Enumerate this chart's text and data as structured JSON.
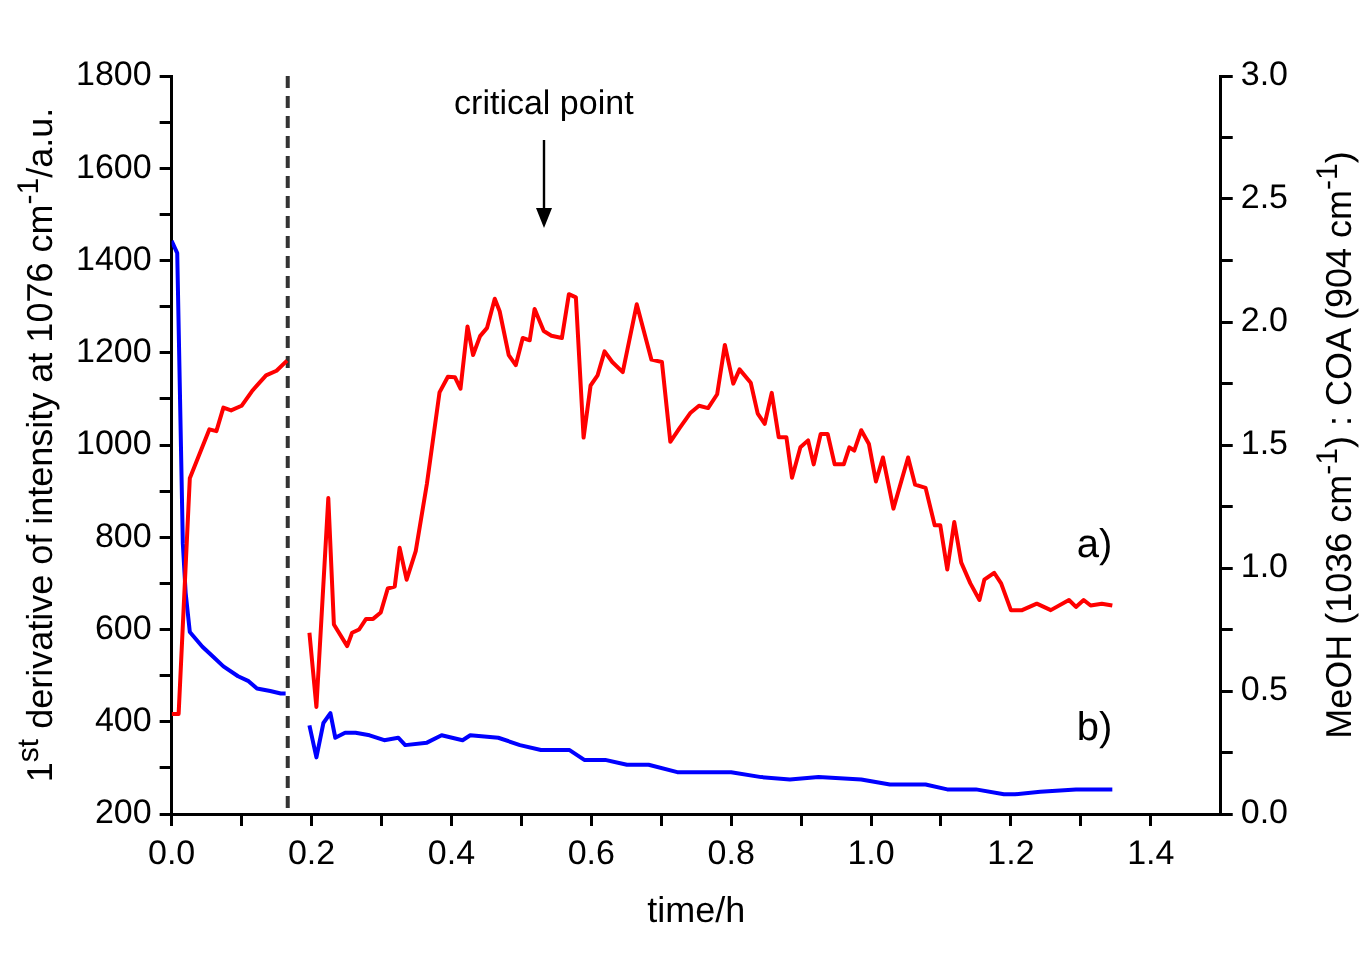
{
  "chart_data": {
    "type": "line",
    "xlabel": "time/h",
    "ylabel": "1$^{st}$ derivative of intensity at 1076 cm$^{-1}$/a.u.",
    "y2label": "MeOH (1036 cm$^{-1}$) : COA (904 cm$^{-1}$)",
    "xlim": [
      0,
      1.5
    ],
    "xticks": [
      {
        "value": 0,
        "label": "0.0"
      },
      {
        "value": 0.1,
        "label": null
      },
      {
        "value": 0.2,
        "label": "0.2"
      },
      {
        "value": 0.3,
        "label": null
      },
      {
        "value": 0.4,
        "label": "0.4"
      },
      {
        "value": 0.5,
        "label": null
      },
      {
        "value": 0.6,
        "label": "0.6"
      },
      {
        "value": 0.7,
        "label": null
      },
      {
        "value": 0.8,
        "label": "0.8"
      },
      {
        "value": 0.9,
        "label": null
      },
      {
        "value": 1.0,
        "label": "1.0"
      },
      {
        "value": 1.1,
        "label": null
      },
      {
        "value": 1.2,
        "label": "1.2"
      },
      {
        "value": 1.3,
        "label": null
      },
      {
        "value": 1.4,
        "label": "1.4"
      }
    ],
    "ylim": [
      200,
      1800
    ],
    "yticks": [
      200,
      {
        "value": 300,
        "label": null
      },
      400,
      {
        "value": 500,
        "label": null
      },
      600,
      {
        "value": 700,
        "label": null
      },
      800,
      {
        "value": 900,
        "label": null
      },
      1000,
      {
        "value": 1100,
        "label": null
      },
      1200,
      {
        "value": 1300,
        "label": null
      },
      1400,
      {
        "value": 1500,
        "label": null
      },
      1600,
      {
        "value": 1700,
        "label": null
      },
      1800
    ],
    "y2lim": [
      0,
      3
    ],
    "y2ticks": [
      {
        "value": 0,
        "label": "0.0"
      },
      {
        "value": 0.25,
        "label": null
      },
      0.5,
      {
        "value": 0.75,
        "label": null
      },
      {
        "value": 1,
        "label": "1.0"
      },
      {
        "value": 1.25,
        "label": null
      },
      1.5,
      {
        "value": 1.75,
        "label": null
      },
      {
        "value": 2,
        "label": "2.0"
      },
      {
        "value": 2.25,
        "label": null
      },
      2.5,
      {
        "value": 2.75,
        "label": null
      },
      {
        "value": 3,
        "label": "3.0"
      }
    ],
    "grid": false,
    "legend": false,
    "marker": "none",
    "line_style": "solid",
    "ref_lines": [
      {
        "axis": "x",
        "value": 0.166,
        "color": "#333333",
        "line_style": "dashed"
      }
    ],
    "annotations": [
      "critical point"
    ],
    "series": [
      {
        "name": "a)",
        "color": "#ff0000",
        "x": [
          0,
          0.01,
          0.026,
          0.054,
          0.064,
          0.074,
          0.085,
          0.1,
          0.115,
          0.135,
          0.15,
          0.165,
          0.18,
          0.197,
          0.207,
          0.224,
          0.232,
          0.251,
          0.258,
          0.268,
          0.278,
          0.288,
          0.299,
          0.309,
          0.319,
          0.326,
          0.336,
          0.349,
          0.365,
          0.383,
          0.395,
          0.405,
          0.413,
          0.423,
          0.431,
          0.441,
          0.451,
          0.462,
          0.469,
          0.482,
          0.492,
          0.502,
          0.512,
          0.519,
          0.532,
          0.543,
          0.558,
          0.568,
          0.578,
          0.589,
          0.599,
          0.609,
          0.619,
          0.63,
          0.645,
          0.665,
          0.686,
          0.701,
          0.713,
          0.726,
          0.742,
          0.754,
          0.767,
          0.78,
          0.791,
          0.803,
          0.812,
          0.828,
          0.838,
          0.848,
          0.858,
          0.868,
          0.879,
          0.887,
          0.899,
          0.91,
          0.918,
          0.928,
          0.938,
          0.948,
          0.961,
          0.969,
          0.976,
          0.986,
          0.997,
          1.007,
          1.017,
          1.032,
          1.053,
          1.063,
          1.078,
          1.091,
          1.099,
          1.109,
          1.119,
          1.129,
          1.142,
          1.155,
          1.162,
          1.176,
          1.186,
          1.2,
          1.216,
          1.237,
          1.257,
          1.283,
          1.293,
          1.304,
          1.314,
          1.33,
          1.345
        ],
        "values": [
          417,
          417,
          928,
          1034,
          1030,
          1081,
          1075,
          1085,
          1117,
          1151,
          1161,
          1183,
          null,
          593,
          432,
          885,
          611,
          564,
          593,
          600,
          623,
          623,
          637,
          689,
          693,
          777,
          708,
          770,
          916,
          1114,
          1148,
          1147,
          1122,
          1257,
          1195,
          1236,
          1254,
          1317,
          1290,
          1195,
          1173,
          1232,
          1227,
          1295,
          1247,
          1237,
          1232,
          1327,
          1320,
          1016,
          1129,
          1151,
          1203,
          1180,
          1158,
          1305,
          1185,
          1180,
          1007,
          1036,
          1070,
          1085,
          1080,
          1110,
          1217,
          1133,
          1164,
          1135,
          1068,
          1046,
          1113,
          1017,
          1017,
          929,
          995,
          1010,
          958,
          1024,
          1024,
          958,
          958,
          995,
          988,
          1032,
          1002,
          921,
          973,
          862,
          973,
          914,
          907,
          826,
          826,
          730,
          833,
          745,
          700,
          664,
          708,
          723,
          700,
          642,
          642,
          656,
          642,
          664,
          649,
          664,
          652,
          656,
          652
        ]
      },
      {
        "name": "b)",
        "color": "#0000ff",
        "axis": "y2",
        "x": [
          0,
          0.008,
          0.016,
          0.02,
          0.026,
          0.044,
          0.059,
          0.074,
          0.095,
          0.11,
          0.122,
          0.141,
          0.156,
          0.163,
          0.18,
          0.197,
          0.207,
          0.217,
          0.227,
          0.234,
          0.248,
          0.263,
          0.283,
          0.304,
          0.324,
          0.334,
          0.365,
          0.386,
          0.416,
          0.427,
          0.467,
          0.498,
          0.528,
          0.569,
          0.59,
          0.62,
          0.651,
          0.682,
          0.723,
          0.754,
          0.8,
          0.843,
          0.884,
          0.925,
          0.986,
          1.027,
          1.078,
          1.109,
          1.15,
          1.19,
          1.206,
          1.242,
          1.293,
          1.345
        ],
        "values": [
          2.33,
          2.28,
          1.1,
          0.9,
          0.74,
          0.68,
          0.64,
          0.6,
          0.56,
          0.54,
          0.51,
          0.5,
          0.49,
          0.49,
          null,
          0.36,
          0.23,
          0.37,
          0.41,
          0.31,
          0.33,
          0.33,
          0.32,
          0.3,
          0.31,
          0.28,
          0.29,
          0.32,
          0.3,
          0.32,
          0.31,
          0.28,
          0.26,
          0.26,
          0.22,
          0.22,
          0.2,
          0.2,
          0.17,
          0.17,
          0.17,
          0.15,
          0.14,
          0.15,
          0.14,
          0.12,
          0.12,
          0.1,
          0.1,
          0.08,
          0.08,
          0.09,
          0.1,
          0.1
        ]
      }
    ]
  }
}
